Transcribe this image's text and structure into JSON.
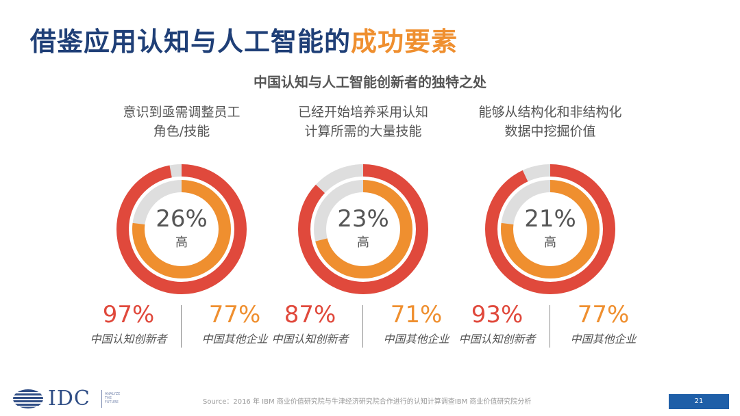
{
  "slide": {
    "title_main": "借鉴应用认知与人工智能的",
    "title_highlight": "成功要素",
    "subtitle": "中国认知与人工智能创新者的独特之处",
    "colors": {
      "red": "#e0493c",
      "orange": "#ef8f2f",
      "grey": "#dedede",
      "navy": "#1f3f77"
    },
    "items": [
      {
        "title_line1": "意识到亟需调整员工",
        "title_line2": "角色/技能",
        "outer_percent": 97,
        "inner_percent": 77,
        "center_value": "26%",
        "center_label": "高",
        "left_value": "97%",
        "left_caption": "中国认知创新者",
        "right_value": "77%",
        "right_caption": "中国其他企业"
      },
      {
        "title_line1": "已经开始培养采用认知",
        "title_line2": "计算所需的大量技能",
        "outer_percent": 87,
        "inner_percent": 71,
        "center_value": "23%",
        "center_label": "高",
        "left_value": "87%",
        "left_caption": "中国认知创新者",
        "right_value": "71%",
        "right_caption": "中国其他企业"
      },
      {
        "title_line1": "能够从结构化和非结构化",
        "title_line2": "数据中挖掘价值",
        "outer_percent": 93,
        "inner_percent": 77,
        "center_value": "21%",
        "center_label": "高",
        "left_value": "93%",
        "left_caption": "中国认知创新者",
        "right_value": "77%",
        "right_caption": "中国其他企业"
      }
    ]
  },
  "footer": {
    "logo_text": "IDC",
    "logo_tagline": [
      "ANALYZE",
      "THE",
      "FUTURE"
    ],
    "source": "Source：2016 年 IBM 商业价值研究院与牛津经济研究院合作进行的认知计算调查IBM 商业价值研究院分析",
    "page_number": "21"
  }
}
